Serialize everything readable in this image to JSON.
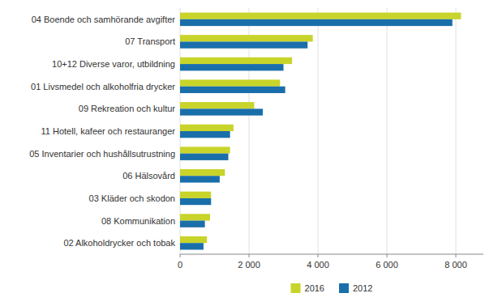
{
  "chart_data": {
    "type": "bar",
    "orientation": "horizontal",
    "categories": [
      "04 Boende och samhörande avgifter",
      "07 Transport",
      "10+12 Diverse varor, utbildning",
      "01 Livsmedel och alkoholfria drycker",
      "09 Rekreation och kultur",
      "11 Hotell, kafeer och restauranger",
      "05 Inventarier och hushållsutrustning",
      "06 Hälsovård",
      "03 Kläder och skodon",
      "08 Kommunikation",
      "02 Alkoholdrycker och tobak"
    ],
    "series": [
      {
        "name": "2016",
        "color": "#c8d42a",
        "values": [
          8150,
          3850,
          3250,
          2900,
          2150,
          1550,
          1450,
          1300,
          900,
          870,
          780
        ]
      },
      {
        "name": "2012",
        "color": "#1a6faa",
        "values": [
          7900,
          3700,
          3000,
          3050,
          2400,
          1450,
          1400,
          1150,
          900,
          720,
          680
        ]
      }
    ],
    "xlim": [
      0,
      8800
    ],
    "xticks": [
      0,
      {
        "value": 2000,
        "label": "2 000"
      },
      {
        "value": 4000,
        "label": "4 000"
      },
      {
        "value": 6000,
        "label": "6 000"
      },
      {
        "value": 8000,
        "label": "8 000"
      }
    ],
    "grid": true,
    "legend": "bottom"
  }
}
